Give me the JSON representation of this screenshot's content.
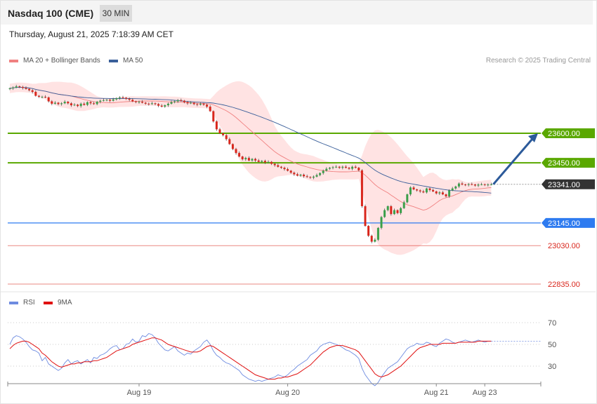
{
  "header": {
    "title": "Nasdaq 100 (CME)",
    "timeframe": "30 MIN",
    "timestamp": "Thursday, August 21, 2025 7:18:39 AM CET"
  },
  "legend": {
    "ma20_label": "MA 20 + Bollinger Bands",
    "ma50_label": "MA 50",
    "rsi_label": "RSI",
    "rsi_ma_label": "9MA",
    "credit": "Research © 2025 Trading Central"
  },
  "colors": {
    "ma20": "#f08080",
    "ma50": "#3a5f9a",
    "band_fill": "#ffd9d9",
    "bull": "#3aa04a",
    "bear": "#d9261c",
    "resistance": "#5aa800",
    "current": "#333333",
    "support": "#2e7bf0",
    "target_low": "#d9261c",
    "arrow": "#2c5a9a",
    "rsi": "#6d8be0",
    "rsi_ma": "#e01010"
  },
  "chart_data": {
    "type": "candlestick",
    "price_range": [
      22835,
      23650
    ],
    "levels": [
      {
        "value": 23600.0,
        "label": "23600.00",
        "kind": "resistance"
      },
      {
        "value": 23450.0,
        "label": "23450.00",
        "kind": "resistance"
      },
      {
        "value": 23341.0,
        "label": "23341.00",
        "kind": "current"
      },
      {
        "value": 23145.0,
        "label": "23145.00",
        "kind": "support"
      },
      {
        "value": 23030.0,
        "label": "23030.00",
        "kind": "target-low"
      },
      {
        "value": 22835.0,
        "label": "22835.00",
        "kind": "target-low"
      }
    ],
    "x_labels": [
      {
        "label": "Aug 19",
        "index": 40
      },
      {
        "label": "Aug 20",
        "index": 86
      },
      {
        "label": "Aug 21",
        "index": 132
      },
      {
        "label": "Aug 23",
        "index": 147
      }
    ],
    "candle_count": 150,
    "closes": [
      23828,
      23832,
      23838,
      23835,
      23830,
      23825,
      23818,
      23810,
      23790,
      23785,
      23785,
      23782,
      23762,
      23750,
      23755,
      23748,
      23752,
      23760,
      23752,
      23742,
      23745,
      23738,
      23750,
      23744,
      23758,
      23752,
      23748,
      23760,
      23765,
      23768,
      23770,
      23765,
      23772,
      23778,
      23782,
      23780,
      23775,
      23770,
      23762,
      23758,
      23760,
      23755,
      23750,
      23748,
      23752,
      23748,
      23740,
      23735,
      23742,
      23750,
      23758,
      23762,
      23768,
      23765,
      23758,
      23752,
      23755,
      23748,
      23745,
      23750,
      23745,
      23735,
      23712,
      23660,
      23620,
      23600,
      23590,
      23570,
      23545,
      23520,
      23500,
      23482,
      23468,
      23475,
      23462,
      23470,
      23462,
      23455,
      23460,
      23452,
      23455,
      23445,
      23438,
      23430,
      23425,
      23418,
      23410,
      23400,
      23392,
      23385,
      23390,
      23382,
      23378,
      23375,
      23380,
      23388,
      23398,
      23410,
      23420,
      23425,
      23428,
      23430,
      23425,
      23430,
      23425,
      23420,
      23430,
      23425,
      23412,
      23230,
      23130,
      23080,
      23050,
      23060,
      23120,
      23175,
      23210,
      23230,
      23190,
      23210,
      23195,
      23220,
      23250,
      23290,
      23325,
      23315,
      23310,
      23305,
      23300,
      23320,
      23312,
      23305,
      23295,
      23300,
      23290,
      23280,
      23310,
      23320,
      23330,
      23345,
      23340,
      23338,
      23342,
      23340,
      23335,
      23340,
      23341,
      23338,
      23340,
      23341
    ],
    "rsi_range": [
      10,
      80
    ],
    "rsi_levels": [
      70,
      50,
      30
    ],
    "rsi": [
      50,
      56,
      58,
      57,
      55,
      52,
      48,
      45,
      44,
      42,
      35,
      38,
      32,
      30,
      28,
      26,
      28,
      33,
      36,
      32,
      34,
      35,
      32,
      34,
      36,
      33,
      38,
      37,
      40,
      41,
      43,
      46,
      48,
      49,
      45,
      46,
      50,
      51,
      55,
      52,
      53,
      58,
      57,
      60,
      59,
      56,
      51,
      48,
      45,
      44,
      46,
      48,
      44,
      42,
      40,
      42,
      41,
      44,
      46,
      48,
      52,
      54,
      50,
      44,
      40,
      38,
      35,
      33,
      32,
      30,
      28,
      26,
      22,
      20,
      18,
      17,
      16,
      17,
      16,
      17,
      18,
      19,
      20,
      22,
      21,
      20,
      22,
      25,
      27,
      30,
      32,
      34,
      36,
      40,
      42,
      44,
      48,
      50,
      51,
      52,
      51,
      50,
      49,
      47,
      45,
      44,
      42,
      40,
      37,
      28,
      22,
      18,
      14,
      12,
      15,
      20,
      24,
      28,
      30,
      32,
      34,
      38,
      42,
      46,
      48,
      49,
      51,
      50,
      50,
      52,
      51,
      49,
      48,
      51,
      53,
      55,
      54,
      52,
      51,
      52,
      53,
      54,
      53,
      52,
      53,
      54,
      53,
      52,
      53,
      53
    ],
    "rsi_ma": [
      46,
      49,
      51,
      52,
      53,
      53,
      52,
      50,
      48,
      46,
      42,
      40,
      37,
      34,
      32,
      30,
      29,
      30,
      31,
      32,
      32,
      33,
      33,
      34,
      34,
      34,
      35,
      35,
      36,
      37,
      38,
      40,
      42,
      44,
      45,
      46,
      47,
      48,
      50,
      51,
      52,
      53,
      54,
      55,
      56,
      56,
      55,
      54,
      52,
      50,
      49,
      48,
      47,
      46,
      45,
      44,
      43,
      43,
      43,
      44,
      46,
      48,
      49,
      48,
      46,
      44,
      42,
      40,
      38,
      36,
      34,
      32,
      30,
      28,
      26,
      24,
      22,
      21,
      20,
      19,
      18,
      18,
      18,
      19,
      19,
      20,
      20,
      21,
      22,
      23,
      25,
      27,
      29,
      31,
      34,
      37,
      40,
      43,
      45,
      47,
      48,
      49,
      49,
      49,
      48,
      47,
      46,
      45,
      43,
      39,
      35,
      31,
      27,
      23,
      21,
      20,
      21,
      22,
      24,
      26,
      28,
      30,
      33,
      36,
      39,
      42,
      45,
      47,
      48,
      49,
      50,
      50,
      50,
      50,
      51,
      51,
      51,
      51,
      51,
      52,
      52,
      52,
      52,
      52,
      52,
      53,
      53,
      53,
      53,
      53
    ]
  }
}
